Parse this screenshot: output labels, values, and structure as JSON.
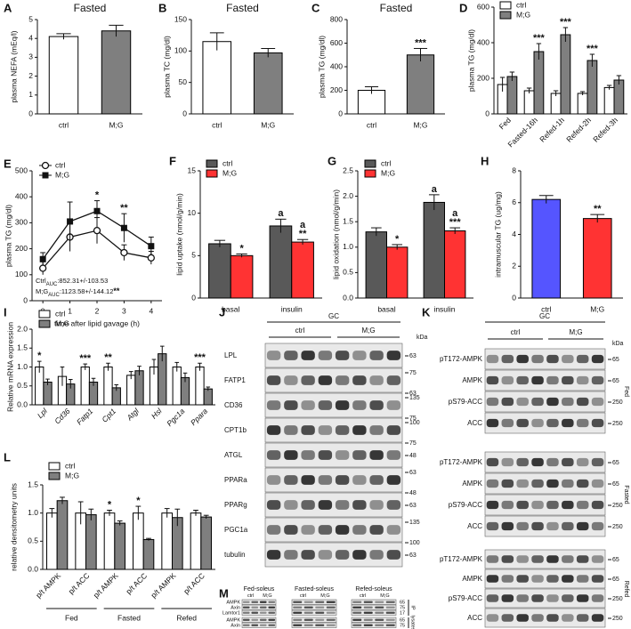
{
  "chart_data": [
    {
      "panel": "A",
      "type": "bar",
      "title": "Fasted",
      "ylabel": "plasma NEFA (mEq/l)",
      "categories": [
        "ctrl",
        "M;G"
      ],
      "values": [
        4.1,
        4.4
      ],
      "errors": [
        0.15,
        0.3
      ],
      "colors": [
        "#ffffff",
        "#7f7f7f"
      ],
      "ylim": [
        0,
        5
      ],
      "yticks": [
        0,
        1,
        2,
        3,
        4,
        5
      ]
    },
    {
      "panel": "B",
      "type": "bar",
      "title": "Fasted",
      "ylabel": "plasma TC (mg/dl)",
      "categories": [
        "ctrl",
        "M;G"
      ],
      "values": [
        115,
        97
      ],
      "errors": [
        14,
        7
      ],
      "colors": [
        "#ffffff",
        "#7f7f7f"
      ],
      "ylim": [
        0,
        150
      ],
      "yticks": [
        0,
        50,
        100,
        150
      ]
    },
    {
      "panel": "C",
      "type": "bar",
      "title": "Fasted",
      "ylabel": "plasma TG (mg/dl)",
      "categories": [
        "ctrl",
        "M;G"
      ],
      "values": [
        200,
        500
      ],
      "errors": [
        30,
        55
      ],
      "colors": [
        "#ffffff",
        "#7f7f7f"
      ],
      "ylim": [
        0,
        800
      ],
      "yticks": [
        0,
        200,
        400,
        600,
        800
      ],
      "annotations": [
        {
          "text": "***",
          "index": 1
        }
      ]
    },
    {
      "panel": "D",
      "type": "grouped_bar",
      "ylabel": "plasma TG (mg/dl)",
      "categories": [
        "Fed",
        "Fasted-16h",
        "Refed-1h",
        "Refed-2h",
        "Refed-3h"
      ],
      "series": [
        {
          "name": "ctrl",
          "color": "#ffffff",
          "values": [
            165,
            130,
            115,
            115,
            148
          ],
          "errors": [
            40,
            15,
            15,
            10,
            12
          ]
        },
        {
          "name": "M;G",
          "color": "#7f7f7f",
          "values": [
            210,
            350,
            445,
            300,
            190
          ],
          "errors": [
            25,
            45,
            40,
            35,
            25
          ]
        }
      ],
      "ylim": [
        0,
        600
      ],
      "yticks": [
        0,
        200,
        400,
        600
      ],
      "legend": "upper left",
      "annotations": [
        {
          "text": "***",
          "series": 1,
          "index": 1
        },
        {
          "text": "***",
          "series": 1,
          "index": 2
        },
        {
          "text": "***",
          "series": 1,
          "index": 3
        }
      ]
    },
    {
      "panel": "E",
      "type": "line",
      "ylabel": "plasma TG (mg/dl)",
      "xlabel": "time after lipid gavage (h)",
      "x": [
        0,
        1,
        2,
        3,
        4
      ],
      "xlim": [
        -0.4,
        4.4
      ],
      "xticks": [
        0,
        1,
        2,
        3,
        4
      ],
      "series": [
        {
          "name": "ctrl",
          "color": "#111111",
          "marker": "circle",
          "values": [
            125,
            245,
            270,
            185,
            165
          ],
          "errors": [
            25,
            55,
            50,
            30,
            25
          ]
        },
        {
          "name": "M;G",
          "color": "#111111",
          "marker": "square",
          "values": [
            160,
            305,
            345,
            280,
            210
          ],
          "errors": [
            25,
            75,
            40,
            55,
            35
          ]
        }
      ],
      "ylim": [
        0,
        500
      ],
      "yticks": [
        0,
        100,
        200,
        300,
        400,
        500
      ],
      "legend": "upper left",
      "annotations": [
        {
          "text": "*",
          "index": 2
        },
        {
          "text": "**",
          "index": 3
        }
      ],
      "notes": [
        {
          "name": "Ctrl",
          "sub": "AUC",
          "text": ":852.31+/-103.53"
        },
        {
          "name": "M;G",
          "sub": "AUC",
          "text": ":1123.58+/-144.12",
          "sig": "**"
        }
      ]
    },
    {
      "panel": "F",
      "type": "grouped_bar",
      "ylabel": "lipid uptake (nmol/g/min)",
      "categories": [
        "basal",
        "insulin"
      ],
      "series": [
        {
          "name": "ctrl",
          "color": "#595959",
          "values": [
            6.4,
            8.5
          ],
          "errors": [
            0.4,
            0.8
          ]
        },
        {
          "name": "M;G",
          "color": "#ff3333",
          "values": [
            5.0,
            6.6
          ],
          "errors": [
            0.2,
            0.3
          ]
        }
      ],
      "ylim": [
        0,
        15
      ],
      "yticks": [
        0,
        5,
        10,
        15
      ],
      "legend": "upper left",
      "annotations": [
        {
          "text": "*",
          "series": 1,
          "index": 0
        },
        {
          "text": "a",
          "series": 0,
          "index": 1
        },
        {
          "text": "**",
          "series": 1,
          "index": 1
        },
        {
          "text": "a",
          "series": 1,
          "index": 1
        }
      ]
    },
    {
      "panel": "G",
      "type": "grouped_bar",
      "ylabel": "lipid oxidation (nmol/g/min)",
      "categories": [
        "basal",
        "insulin"
      ],
      "series": [
        {
          "name": "ctrl",
          "color": "#595959",
          "values": [
            1.3,
            1.88
          ],
          "errors": [
            0.08,
            0.15
          ]
        },
        {
          "name": "M;G",
          "color": "#ff3333",
          "values": [
            1.0,
            1.32
          ],
          "errors": [
            0.05,
            0.06
          ]
        }
      ],
      "ylim": [
        0,
        2.5
      ],
      "yticks": [
        {
          "value": 0,
          "label": "0.0"
        },
        {
          "value": 0.5,
          "label": "0.5"
        },
        {
          "value": 1,
          "label": "1.0"
        },
        {
          "value": 1.5,
          "label": "1.5"
        },
        {
          "value": 2,
          "label": "2.0"
        },
        {
          "value": 2.5,
          "label": "2.5"
        }
      ],
      "legend": "upper left",
      "annotations": [
        {
          "text": "*",
          "series": 1,
          "index": 0
        },
        {
          "text": "a",
          "series": 0,
          "index": 1
        },
        {
          "text": "***",
          "series": 1,
          "index": 1
        },
        {
          "text": "a",
          "series": 1,
          "index": 1
        }
      ]
    },
    {
      "panel": "H",
      "type": "bar",
      "ylabel": "intramuscular TG (ug/mg)",
      "categories": [
        "ctrl",
        "M;G"
      ],
      "values": [
        6.2,
        5.0
      ],
      "errors": [
        0.25,
        0.25
      ],
      "colors": [
        "#5555ff",
        "#ff3333"
      ],
      "ylim": [
        0,
        8
      ],
      "yticks": [
        0,
        2,
        4,
        6,
        8
      ],
      "annotations": [
        {
          "text": "**",
          "index": 1
        }
      ]
    },
    {
      "panel": "I",
      "type": "grouped_bar",
      "ylabel": "Relative mRNA expression",
      "categories": [
        "Lpl",
        "Cd36",
        "Fatp1",
        "Cpt1",
        "Atgl",
        "Hsl",
        "Pgc1a",
        "Ppara"
      ],
      "italic_categories": true,
      "series": [
        {
          "name": "ctrl",
          "color": "#ffffff",
          "values": [
            1.0,
            0.75,
            1.0,
            1.0,
            0.78,
            1.0,
            1.0,
            1.0
          ],
          "errors": [
            0.15,
            0.25,
            0.08,
            0.1,
            0.1,
            0.2,
            0.12,
            0.1
          ]
        },
        {
          "name": "M;G",
          "color": "#7f7f7f",
          "values": [
            0.6,
            0.55,
            0.6,
            0.45,
            0.9,
            1.35,
            0.72,
            0.42
          ],
          "errors": [
            0.08,
            0.12,
            0.1,
            0.08,
            0.12,
            0.2,
            0.12,
            0.05
          ]
        }
      ],
      "ylim": [
        0,
        2
      ],
      "yticks": [
        {
          "value": 0,
          "label": "0.0"
        },
        {
          "value": 0.5,
          "label": "0.5"
        },
        {
          "value": 1,
          "label": "1.0"
        },
        {
          "value": 1.5,
          "label": "1.5"
        },
        {
          "value": 2,
          "label": "2.0"
        }
      ],
      "legend": "upper left",
      "annotations": [
        {
          "text": "*",
          "series": 0,
          "index": 0
        },
        {
          "text": "***",
          "series": 0,
          "index": 2
        },
        {
          "text": "**",
          "series": 0,
          "index": 3
        },
        {
          "text": "***",
          "series": 0,
          "index": 7
        }
      ]
    },
    {
      "panel": "L",
      "type": "grouped_bar",
      "ylabel": "relative densitometry units",
      "categories": [
        "p/t AMPK",
        "p/t ACC",
        "p/t AMPK",
        "p/t ACC",
        "p/t AMPK",
        "p/t ACC"
      ],
      "groups": [
        "Fed",
        "Fasted",
        "Refed"
      ],
      "series": [
        {
          "name": "ctrl",
          "color": "#ffffff",
          "values": [
            1.0,
            1.0,
            1.0,
            1.0,
            1.0,
            1.0
          ],
          "errors": [
            0.08,
            0.2,
            0.05,
            0.12,
            0.08,
            0.05
          ]
        },
        {
          "name": "M;G",
          "color": "#7f7f7f",
          "values": [
            1.22,
            0.97,
            0.82,
            0.53,
            0.92,
            0.93
          ],
          "errors": [
            0.06,
            0.1,
            0.04,
            0.02,
            0.15,
            0.03
          ]
        }
      ],
      "ylim": [
        0,
        1.5
      ],
      "yticks": [
        {
          "value": 0,
          "label": "0.0"
        },
        {
          "value": 0.5,
          "label": "0.5"
        },
        {
          "value": 1,
          "label": "1.0"
        },
        {
          "value": 1.5,
          "label": "1.5"
        }
      ],
      "legend": "upper left",
      "annotations": [
        {
          "text": "*",
          "series": 0,
          "index": 2
        },
        {
          "text": "*",
          "series": 0,
          "index": 3
        }
      ]
    }
  ],
  "blots": {
    "J": {
      "panel": "J",
      "header": "GC",
      "groups": [
        "ctrl",
        "M;G"
      ],
      "unit": "kDa",
      "rows": [
        {
          "label": "LPL",
          "markers": [
            63
          ]
        },
        {
          "label": "FATP1",
          "markers": [
            75,
            63
          ]
        },
        {
          "label": "CD36",
          "markers": [
            135,
            75
          ]
        },
        {
          "label": "CPT1b",
          "markers": [
            100,
            75
          ]
        },
        {
          "label": "ATGL",
          "markers": [
            48
          ]
        },
        {
          "label": "PPARa",
          "markers": [
            63,
            48
          ]
        },
        {
          "label": "PPARg",
          "markers": [
            63
          ]
        },
        {
          "label": "PGC1a",
          "markers": [
            135,
            100
          ]
        },
        {
          "label": "tubulin",
          "markers": [
            63
          ]
        }
      ]
    },
    "K": {
      "panel": "K",
      "header": "GC",
      "groups": [
        "ctrl",
        "M;G"
      ],
      "unit": "kDa",
      "blocks": [
        {
          "label": "Fed",
          "rows": [
            {
              "label": "pT172-AMPK",
              "markers": [
                65
              ]
            },
            {
              "label": "AMPK",
              "markers": [
                65
              ]
            },
            {
              "label": "pS79-ACC",
              "markers": [
                250
              ]
            },
            {
              "label": "ACC",
              "markers": [
                250
              ]
            }
          ]
        },
        {
          "label": "Fasted",
          "rows": [
            {
              "label": "pT172-AMPK",
              "markers": [
                65
              ]
            },
            {
              "label": "AMPK",
              "markers": [
                65
              ]
            },
            {
              "label": "pS79-ACC",
              "markers": [
                250
              ]
            },
            {
              "label": "ACC",
              "markers": [
                250
              ]
            }
          ]
        },
        {
          "label": "Refed",
          "rows": [
            {
              "label": "pT172-AMPK",
              "markers": [
                65
              ]
            },
            {
              "label": "AMPK",
              "markers": [
                65
              ]
            },
            {
              "label": "pS79-ACC",
              "markers": [
                250
              ]
            },
            {
              "label": "ACC",
              "markers": [
                250
              ]
            }
          ]
        }
      ]
    },
    "M": {
      "panel": "M",
      "groups": [
        {
          "label": "Fed-soleus",
          "lanes": [
            "ctrl",
            "M;G"
          ]
        },
        {
          "label": "Fasted-soleus",
          "lanes": [
            "ctrl",
            "M;G"
          ]
        },
        {
          "label": "Refed-soleus",
          "lanes": [
            "ctrl",
            "M;G"
          ]
        }
      ],
      "blocks": [
        {
          "label": "IP",
          "rows": [
            {
              "label": "AMPK",
              "markers": [
                65
              ]
            },
            {
              "label": "Axin",
              "markers": [
                75
              ]
            },
            {
              "label": "Lamtor1",
              "markers": [
                17
              ]
            }
          ]
        },
        {
          "label": "lysates",
          "rows": [
            {
              "label": "AMPK",
              "markers": [
                65
              ]
            },
            {
              "label": "Axin",
              "markers": [
                75
              ]
            }
          ]
        }
      ]
    }
  }
}
